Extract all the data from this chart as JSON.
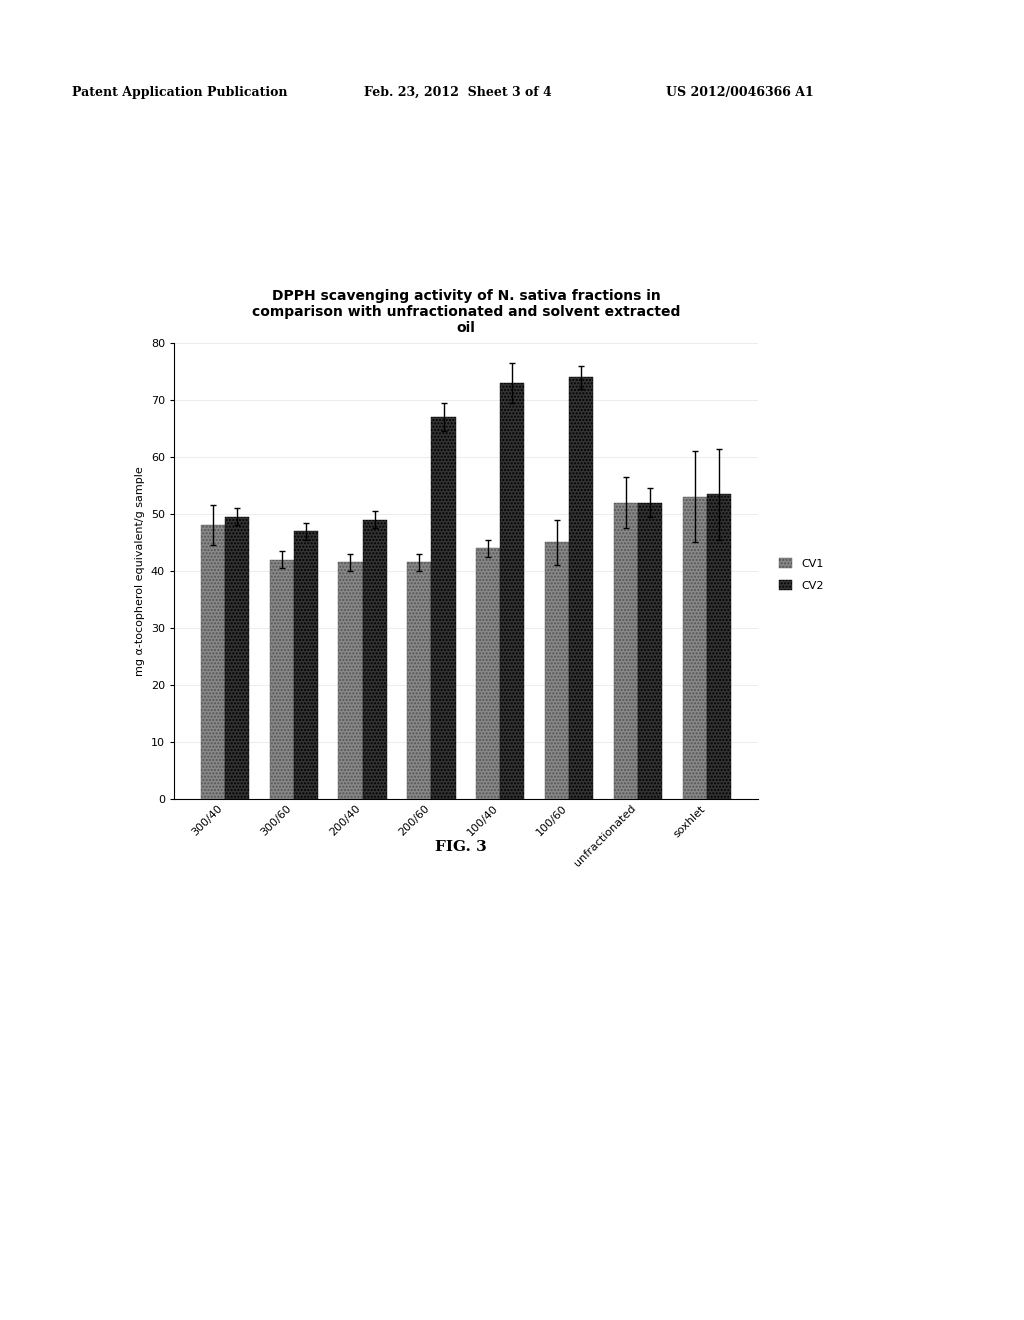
{
  "categories": [
    "300/40",
    "300/60",
    "200/40",
    "200/60",
    "100/40",
    "100/60",
    "unfractionated",
    "soxhlet"
  ],
  "cv1_values": [
    48.0,
    42.0,
    41.5,
    41.5,
    44.0,
    45.0,
    52.0,
    53.0
  ],
  "cv2_values": [
    49.5,
    47.0,
    49.0,
    67.0,
    73.0,
    74.0,
    52.0,
    53.5
  ],
  "cv1_errors": [
    3.5,
    1.5,
    1.5,
    1.5,
    1.5,
    4.0,
    4.5,
    8.0
  ],
  "cv2_errors": [
    1.5,
    1.5,
    1.5,
    2.5,
    3.5,
    2.0,
    2.5,
    8.0
  ],
  "cv1_color": "#888888",
  "cv2_color": "#333333",
  "ylabel": "mg α-tocopherol equivalent/g sample",
  "title_line1": "DPPH scavenging activity of N. sativa fractions in",
  "title_line2": "comparison with unfractionated and solvent extracted",
  "title_line3": "oil",
  "ylim": [
    0,
    80
  ],
  "yticks": [
    0,
    10,
    20,
    30,
    40,
    50,
    60,
    70,
    80
  ],
  "legend_labels": [
    "CV1",
    "CV2"
  ],
  "fig_caption": "FIG. 3",
  "header_left": "Patent Application Publication",
  "header_mid": "Feb. 23, 2012  Sheet 3 of 4",
  "header_right": "US 2012/0046366 A1",
  "background_color": "#ffffff",
  "bar_width": 0.35
}
